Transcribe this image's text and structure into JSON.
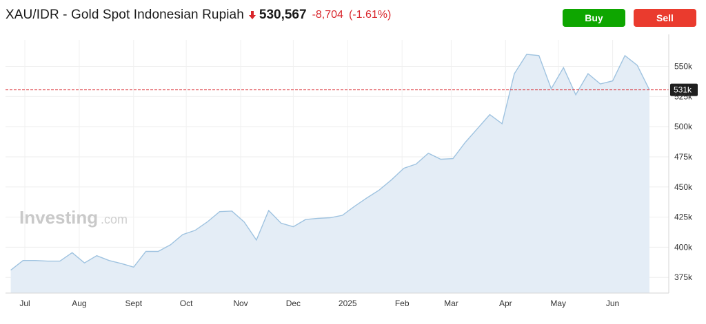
{
  "header": {
    "title": "XAU/IDR - Gold Spot Indonesian Rupiah",
    "price": "530,567",
    "change": "-8,704",
    "change_pct": "(-1.61%)",
    "direction_icon": "arrow-down-icon",
    "down_color": "#d9262c"
  },
  "actions": {
    "buy_label": "Buy",
    "sell_label": "Sell",
    "buy_color": "#0ea600",
    "sell_color": "#ea3b2e"
  },
  "watermark": {
    "brand": "Investing",
    "suffix": ".com"
  },
  "chart_data": {
    "type": "area",
    "current_value_label": "531k",
    "current_value": 530567,
    "ylim": [
      362000,
      572000
    ],
    "yticks": [
      375000,
      400000,
      425000,
      450000,
      475000,
      500000,
      525000,
      550000
    ],
    "ytick_labels": [
      "375k",
      "400k",
      "425k",
      "450k",
      "475k",
      "500k",
      "525k",
      "550k"
    ],
    "xticks": [
      "2024-07-01",
      "2024-08-01",
      "2024-09-01",
      "2024-10-01",
      "2024-11-01",
      "2024-12-01",
      "2025-01-01",
      "2025-02-01",
      "2025-03-01",
      "2025-04-01",
      "2025-05-01",
      "2025-06-01"
    ],
    "xtick_labels": [
      "Jul",
      "Aug",
      "Sept",
      "Oct",
      "Nov",
      "Dec",
      "2025",
      "Feb",
      "Mar",
      "Apr",
      "May",
      "Jun"
    ],
    "xlim": [
      "2024-06-20",
      "2025-07-03"
    ],
    "line_color": "#9fc3e0",
    "fill_color": "#e4edf6",
    "reference_line_color": "#d9262c",
    "grid": true,
    "x": [
      "2024-06-23",
      "2024-06-30",
      "2024-07-07",
      "2024-07-14",
      "2024-07-21",
      "2024-07-28",
      "2024-08-04",
      "2024-08-11",
      "2024-08-18",
      "2024-08-25",
      "2024-09-01",
      "2024-09-08",
      "2024-09-15",
      "2024-09-22",
      "2024-09-29",
      "2024-10-06",
      "2024-10-13",
      "2024-10-20",
      "2024-10-27",
      "2024-11-03",
      "2024-11-10",
      "2024-11-17",
      "2024-11-24",
      "2024-12-01",
      "2024-12-08",
      "2024-12-15",
      "2024-12-22",
      "2024-12-29",
      "2025-01-05",
      "2025-01-12",
      "2025-01-19",
      "2025-01-26",
      "2025-02-02",
      "2025-02-09",
      "2025-02-16",
      "2025-02-23",
      "2025-03-02",
      "2025-03-09",
      "2025-03-16",
      "2025-03-23",
      "2025-03-30",
      "2025-04-06",
      "2025-04-13",
      "2025-04-20",
      "2025-04-27",
      "2025-05-04",
      "2025-05-11",
      "2025-05-18",
      "2025-05-25",
      "2025-06-01",
      "2025-06-08",
      "2025-06-15",
      "2025-06-22"
    ],
    "values": [
      381000,
      389000,
      389000,
      388500,
      388500,
      395500,
      387000,
      393000,
      389000,
      386500,
      383500,
      396500,
      396500,
      402000,
      410500,
      414000,
      421000,
      429500,
      430000,
      421000,
      406000,
      430500,
      420000,
      417000,
      423000,
      424000,
      424500,
      426500,
      434000,
      441000,
      447500,
      456000,
      465500,
      469000,
      478000,
      473000,
      473500,
      487000,
      498500,
      510000,
      502500,
      544000,
      560000,
      559000,
      531500,
      549000,
      526500,
      544000,
      535500,
      538000,
      559000,
      551000,
      530500
    ]
  }
}
